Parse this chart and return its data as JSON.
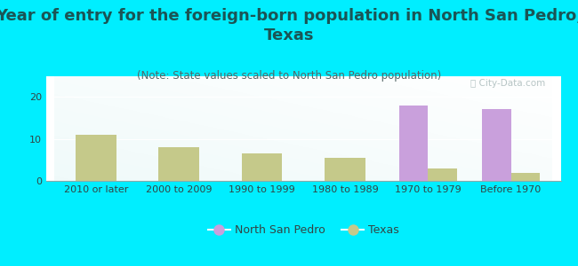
{
  "title": "Year of entry for the foreign-born population in North San Pedro,\nTexas",
  "subtitle": "(Note: State values scaled to North San Pedro population)",
  "categories": [
    "2010 or later",
    "2000 to 2009",
    "1990 to 1999",
    "1980 to 1989",
    "1970 to 1979",
    "Before 1970"
  ],
  "north_san_pedro": [
    0,
    0,
    0,
    0,
    18,
    17
  ],
  "texas": [
    11,
    8,
    6.5,
    5.5,
    3,
    2
  ],
  "north_san_pedro_color": "#c9a0dc",
  "texas_color": "#c5c98a",
  "background_color": "#00eeff",
  "ylim": [
    0,
    25
  ],
  "yticks": [
    0,
    10,
    20
  ],
  "bar_width": 0.35,
  "title_fontsize": 13,
  "subtitle_fontsize": 8.5,
  "tick_fontsize": 8,
  "legend_fontsize": 9,
  "title_color": "#1a5555",
  "subtitle_color": "#556666",
  "tick_color": "#334444"
}
